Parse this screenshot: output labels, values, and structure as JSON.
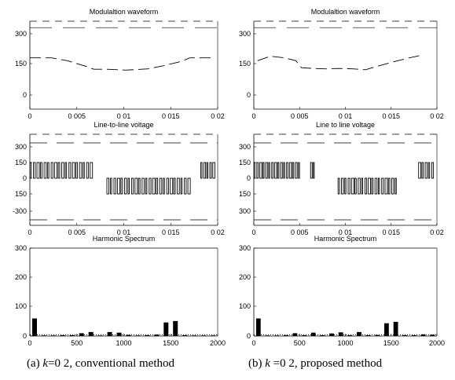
{
  "chart_data": [
    {
      "type": "line",
      "panel": "a-modulation",
      "title": "Modulaltion waveform",
      "xlim": [
        0,
        0.02
      ],
      "ylim": [
        -50,
        380
      ],
      "xticks": [
        "0",
        "0 005",
        "0 01",
        "0 015",
        "0 02"
      ],
      "yticks": [
        "0",
        "150",
        "300"
      ],
      "x": [
        0.0,
        0.0012,
        0.0023,
        0.004,
        0.006,
        0.0068,
        0.0082,
        0.0094,
        0.0102,
        0.0114,
        0.0126,
        0.0142,
        0.0162,
        0.017,
        0.0182,
        0.0195
      ],
      "y": [
        182,
        182,
        182,
        168,
        140,
        126,
        126,
        124,
        122,
        125,
        128,
        143,
        165,
        182,
        182,
        182
      ]
    },
    {
      "type": "line",
      "panel": "b-modulation",
      "title": "Modulaltion waveform",
      "xlim": [
        0,
        0.02
      ],
      "ylim": [
        -50,
        380
      ],
      "xticks": [
        "0",
        "0 005",
        "0 01",
        "0 015",
        "0 02"
      ],
      "yticks": [
        "0",
        "150",
        "300"
      ],
      "x": [
        0.0004,
        0.0018,
        0.0032,
        0.0046,
        0.0052,
        0.0065,
        0.0078,
        0.0092,
        0.0108,
        0.0122,
        0.0136,
        0.0152,
        0.0168,
        0.0182
      ],
      "y": [
        168,
        190,
        183,
        168,
        134,
        130,
        128,
        130,
        128,
        124,
        142,
        162,
        180,
        194
      ]
    },
    {
      "type": "line",
      "panel": "a-line-voltage",
      "title": "Line-to-line voltage",
      "xlim": [
        0,
        0.02
      ],
      "ylim": [
        -380,
        380
      ],
      "xticks": [
        "0",
        "0 005",
        "0 01",
        "0 015",
        "0 02"
      ],
      "yticks": [
        "300",
        "150",
        "0",
        "150",
        "-300"
      ],
      "segments": [
        {
          "from": 0.0,
          "to": 0.0068,
          "level": 150,
          "pulses": 18
        },
        {
          "from": 0.0082,
          "to": 0.0172,
          "level": -150,
          "pulses": 24
        },
        {
          "from": 0.0182,
          "to": 0.0198,
          "level": 150,
          "pulses": 5
        }
      ]
    },
    {
      "type": "line",
      "panel": "b-line-voltage",
      "title": "Line to line voltage",
      "xlim": [
        0,
        0.02
      ],
      "ylim": [
        -380,
        380
      ],
      "xticks": [
        "0",
        "0 005",
        "0 01",
        "0 015",
        "0 02"
      ],
      "yticks": [
        "300",
        "150",
        "0",
        "150",
        "300"
      ],
      "segments": [
        {
          "from": 0.0,
          "to": 0.0052,
          "level": 150,
          "pulses": 16
        },
        {
          "from": 0.0062,
          "to": 0.0068,
          "level": 150,
          "pulses": 2
        },
        {
          "from": 0.0092,
          "to": 0.0158,
          "level": -150,
          "pulses": 18
        },
        {
          "from": 0.018,
          "to": 0.0198,
          "level": 150,
          "pulses": 5
        }
      ]
    },
    {
      "type": "bar",
      "panel": "a-harmonic",
      "title": "Harmonic Spectrum",
      "xlim": [
        0,
        2000
      ],
      "ylim": [
        0,
        310
      ],
      "xticks": [
        "0",
        "500",
        "1000",
        "1500",
        "2000"
      ],
      "yticks": [
        "0",
        "100",
        "200",
        "300"
      ],
      "x": [
        50,
        150,
        250,
        350,
        450,
        550,
        650,
        750,
        850,
        950,
        1050,
        1150,
        1250,
        1350,
        1450,
        1550,
        1650,
        1750,
        1850,
        1950
      ],
      "values": [
        62,
        2,
        2,
        3,
        3,
        10,
        14,
        2,
        14,
        12,
        4,
        2,
        3,
        5,
        48,
        53,
        3,
        2,
        2,
        2
      ]
    },
    {
      "type": "bar",
      "panel": "b-harmonic",
      "title": "Harmonic Spectrum",
      "xlim": [
        0,
        2000
      ],
      "ylim": [
        0,
        310
      ],
      "xticks": [
        "0",
        "500",
        "1000",
        "1500",
        "2000"
      ],
      "yticks": [
        "0",
        "100",
        "200",
        "300"
      ],
      "x": [
        50,
        150,
        250,
        350,
        450,
        550,
        650,
        750,
        850,
        950,
        1050,
        1150,
        1250,
        1350,
        1450,
        1550,
        1650,
        1750,
        1850,
        1950
      ],
      "values": [
        62,
        2,
        2,
        3,
        10,
        3,
        12,
        3,
        9,
        13,
        3,
        14,
        3,
        4,
        45,
        50,
        3,
        3,
        6,
        5
      ]
    }
  ],
  "captions": {
    "left_prefix": "(a) ",
    "left_var": "k",
    "left_rest": "=0 2, conventional method",
    "right_prefix": "(b) ",
    "right_var": "k",
    "right_rest": " =0 2, proposed method"
  }
}
